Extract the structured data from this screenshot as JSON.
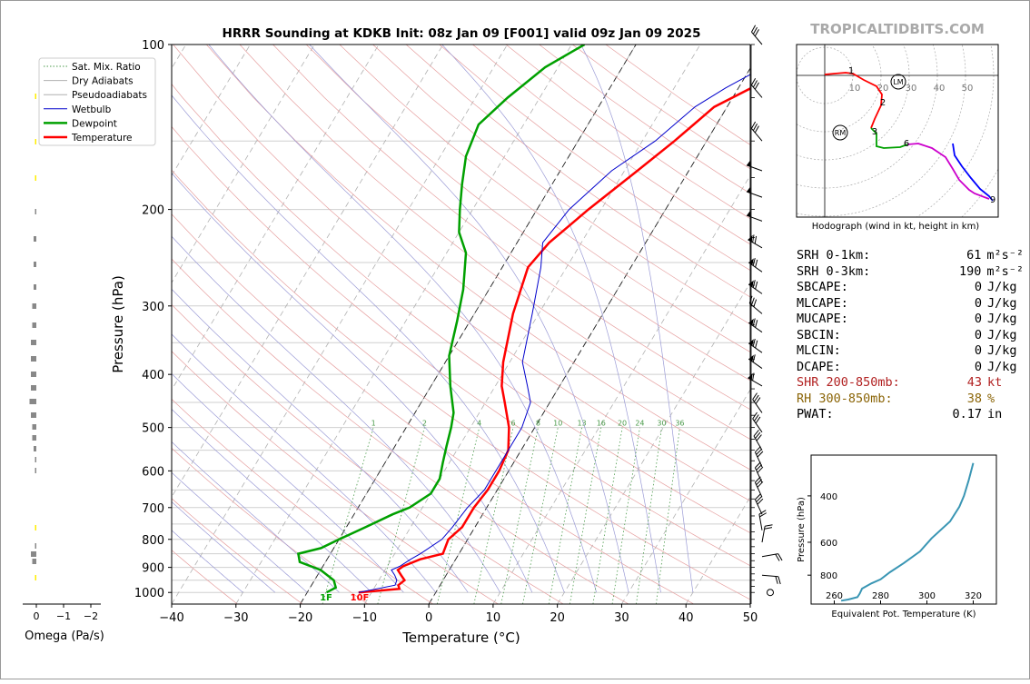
{
  "title": "HRRR Sounding at KDKB Init: 08z Jan 09 [F001] valid 09z Jan 09 2025",
  "watermark": "TROPICALTIDBITS.COM",
  "skewt": {
    "xlabel": "Temperature (°C)",
    "ylabel": "Pressure (hPa)",
    "x_ticks": [
      -40,
      -30,
      -20,
      -10,
      0,
      10,
      20,
      30,
      40,
      50
    ],
    "x_tick_labels": [
      "−40",
      "−30",
      "−20",
      "−10",
      "0",
      "10",
      "20",
      "30",
      "40",
      "50"
    ],
    "y_ticks": [
      100,
      200,
      300,
      400,
      500,
      600,
      700,
      800,
      900,
      1000
    ],
    "xlim": [
      -40,
      50
    ],
    "ylim": [
      1050,
      100
    ],
    "legend": [
      {
        "label": "Sat. Mix. Ratio",
        "color": "#4a9a4a",
        "style": "dotted"
      },
      {
        "label": "Dry Adiabats",
        "color": "#b0b0b0",
        "style": "solid"
      },
      {
        "label": "Pseudoadiabats",
        "color": "#b0b0b0",
        "style": "solid"
      },
      {
        "label": "Wetbulb",
        "color": "#0000cc",
        "style": "solid"
      },
      {
        "label": "Dewpoint",
        "color": "#00a000",
        "style": "solid"
      },
      {
        "label": "Temperature",
        "color": "#ff0000",
        "style": "solid"
      }
    ],
    "mixing_ratio_labels": [
      "1",
      "2",
      "4",
      "6",
      "8",
      "10",
      "13",
      "16",
      "20",
      "24",
      "30",
      "36"
    ],
    "surface_td_label": "1F",
    "surface_t_label": "10F"
  },
  "chart_data": {
    "type": "line",
    "series": [
      {
        "name": "Temperature",
        "x": [
          -12,
          -6,
          -6.5,
          -6,
          -7,
          -8,
          -7.5,
          -5.5,
          -2.5,
          -3,
          -2,
          -2,
          -1.5,
          -1.5,
          -2,
          -4,
          -7,
          -9,
          -11,
          -14,
          -16,
          -15,
          -12,
          -8,
          -5,
          -2,
          2,
          3,
          7
        ],
        "y": [
          1000,
          985,
          970,
          950,
          930,
          910,
          895,
          870,
          850,
          800,
          760,
          700,
          650,
          600,
          550,
          500,
          450,
          420,
          380,
          310,
          255,
          230,
          200,
          170,
          150,
          130,
          120,
          110,
          100
        ]
      },
      {
        "name": "Wetbulb",
        "x": [
          -12,
          -7,
          -7.2,
          -8,
          -9,
          -8,
          -7,
          -6,
          -4,
          -3.5,
          -3,
          -2,
          -2,
          -2,
          -2,
          -3,
          -5,
          -8,
          -11,
          -14,
          -16,
          -15,
          -12,
          -8,
          -5,
          -2,
          2,
          3,
          7
        ],
        "y": [
          1000,
          970,
          950,
          930,
          910,
          895,
          870,
          850,
          800,
          760,
          700,
          650,
          600,
          550,
          500,
          450,
          420,
          380,
          310,
          255,
          230,
          200,
          170,
          150,
          130,
          120,
          110,
          100,
          100
        ]
      },
      {
        "name": "Dewpoint",
        "x": [
          -17,
          -16,
          -17,
          -20,
          -24,
          -25,
          -22,
          -20,
          -17,
          -14,
          -12,
          -10,
          -10,
          -11,
          -12,
          -13,
          -14,
          -17,
          -20,
          -22,
          -24,
          -27,
          -30,
          -32,
          -34,
          -36,
          -37,
          -35,
          -32,
          -28
        ],
        "y": [
          1000,
          980,
          950,
          910,
          880,
          850,
          830,
          800,
          760,
          720,
          700,
          660,
          620,
          580,
          540,
          500,
          470,
          420,
          370,
          320,
          280,
          240,
          220,
          200,
          180,
          160,
          140,
          125,
          110,
          100
        ]
      }
    ]
  },
  "omega": {
    "xlabel": "Omega (Pa/s)",
    "x_tick_labels": [
      "0",
      "−1",
      "−2"
    ]
  },
  "hodograph": {
    "caption": "Hodograph (wind in kt, height in km)",
    "ring_labels": [
      "10",
      "20",
      "30",
      "40",
      "50"
    ],
    "height_labels": [
      "1",
      "2",
      "3",
      "6",
      "9"
    ],
    "marker_rm": "RM",
    "marker_lm": "LM"
  },
  "params": [
    {
      "label": "SRH 0-1km:",
      "value": "61",
      "unit": "m²s⁻²",
      "color": "#000000"
    },
    {
      "label": "SRH 0-3km:",
      "value": "190",
      "unit": "m²s⁻²",
      "color": "#000000"
    },
    {
      "label": "SBCAPE:",
      "value": "0",
      "unit": "J/kg",
      "color": "#000000"
    },
    {
      "label": "MLCAPE:",
      "value": "0",
      "unit": "J/kg",
      "color": "#000000"
    },
    {
      "label": "MUCAPE:",
      "value": "0",
      "unit": "J/kg",
      "color": "#000000"
    },
    {
      "label": "SBCIN:",
      "value": "0",
      "unit": "J/kg",
      "color": "#000000"
    },
    {
      "label": "MLCIN:",
      "value": "0",
      "unit": "J/kg",
      "color": "#000000"
    },
    {
      "label": "DCAPE:",
      "value": "0",
      "unit": "J/kg",
      "color": "#000000"
    },
    {
      "label": "SHR 200-850mb:",
      "value": "43",
      "unit": "kt",
      "color": "#b22222"
    },
    {
      "label": "RH 300-850mb:",
      "value": "38",
      "unit": "%",
      "color": "#8b6508"
    },
    {
      "label": "PWAT:",
      "value": "0.17",
      "unit": "in",
      "color": "#000000"
    }
  ],
  "theta_e": {
    "xlabel": "Equivalent Pot. Temperature (K)",
    "ylabel": "Pressure (hPa)",
    "x_tick_labels": [
      "260",
      "280",
      "300",
      "320"
    ],
    "y_tick_labels": [
      "400",
      "600",
      "800"
    ],
    "line_color": "#3a96b4",
    "x": [
      263,
      266,
      270,
      271,
      272,
      276,
      280,
      284,
      290,
      297,
      302,
      310,
      314,
      316,
      318,
      320
    ],
    "y": [
      1000,
      990,
      970,
      940,
      900,
      860,
      830,
      780,
      720,
      650,
      580,
      500,
      440,
      400,
      350,
      300
    ]
  }
}
